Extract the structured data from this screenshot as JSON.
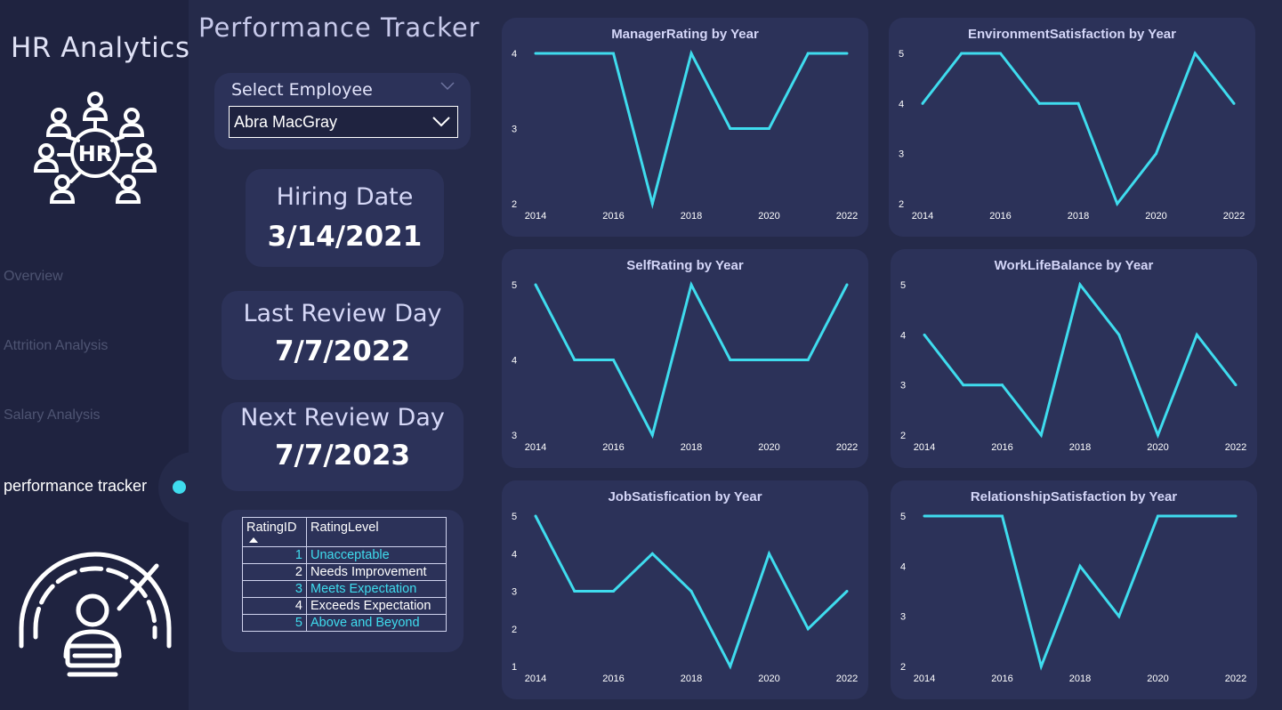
{
  "app": {
    "title": "HR Analytics",
    "page_title": "Performance Tracker"
  },
  "icons": {
    "hr_logo": "hr-people-network-icon",
    "gauge": "performance-gauge-icon",
    "dropdown": "chevron-down-icon"
  },
  "colors": {
    "accent": "#3fdcee",
    "background": "#252a4a",
    "card": "#2c3259",
    "sidebar": "#1f2340"
  },
  "sidebar": {
    "items": [
      {
        "label": "Overview",
        "active": false
      },
      {
        "label": "Attrition Analysis",
        "active": false
      },
      {
        "label": "Salary Analysis",
        "active": false
      },
      {
        "label": "performance tracker",
        "active": true
      }
    ]
  },
  "slicer": {
    "label": "Select Employee",
    "value": "Abra MacGray"
  },
  "kpis": {
    "hiring": {
      "label": "Hiring Date",
      "value": "3/14/2021"
    },
    "last_review": {
      "label": "Last Review Day",
      "value": "7/7/2022"
    },
    "next_review": {
      "label": "Next Review Day",
      "value": "7/7/2023"
    }
  },
  "rating_table": {
    "headers": [
      "RatingID",
      "RatingLevel"
    ],
    "rows": [
      [
        "1",
        "Unacceptable"
      ],
      [
        "2",
        "Needs Improvement"
      ],
      [
        "3",
        "Meets Expectation"
      ],
      [
        "4",
        "Exceeds Expectation"
      ],
      [
        "5",
        "Above and Beyond"
      ]
    ]
  },
  "chart_data": [
    {
      "type": "line",
      "title": "ManagerRating by Year",
      "x": [
        2014,
        2015,
        2016,
        2017,
        2018,
        2019,
        2020,
        2021,
        2022
      ],
      "y": [
        4,
        4,
        4,
        2,
        4,
        3,
        3,
        4,
        4
      ],
      "xticks": [
        "2014",
        "2016",
        "2018",
        "2020",
        "2022"
      ],
      "yticks": [
        "2",
        "3",
        "4"
      ],
      "ylim": [
        2,
        4
      ],
      "color": "#3fdcee"
    },
    {
      "type": "line",
      "title": "EnvironmentSatisfaction by Year",
      "x": [
        2014,
        2015,
        2016,
        2017,
        2018,
        2019,
        2020,
        2021,
        2022
      ],
      "y": [
        4,
        5,
        5,
        4,
        4,
        2,
        3,
        5,
        4
      ],
      "xticks": [
        "2014",
        "2016",
        "2018",
        "2020",
        "2022"
      ],
      "yticks": [
        "2",
        "3",
        "4",
        "5"
      ],
      "ylim": [
        2,
        5
      ],
      "color": "#3fdcee"
    },
    {
      "type": "line",
      "title": "SelfRating by Year",
      "x": [
        2014,
        2015,
        2016,
        2017,
        2018,
        2019,
        2020,
        2021,
        2022
      ],
      "y": [
        5,
        4,
        4,
        3,
        5,
        4,
        4,
        4,
        5
      ],
      "xticks": [
        "2014",
        "2016",
        "2018",
        "2020",
        "2022"
      ],
      "yticks": [
        "3",
        "4",
        "5"
      ],
      "ylim": [
        3,
        5
      ],
      "color": "#3fdcee"
    },
    {
      "type": "line",
      "title": "WorkLifeBalance by Year",
      "x": [
        2014,
        2015,
        2016,
        2017,
        2018,
        2019,
        2020,
        2021,
        2022
      ],
      "y": [
        4,
        3,
        3,
        2,
        5,
        4,
        2,
        4,
        3
      ],
      "xticks": [
        "2014",
        "2016",
        "2018",
        "2020",
        "2022"
      ],
      "yticks": [
        "2",
        "3",
        "4",
        "5"
      ],
      "ylim": [
        2,
        5
      ],
      "color": "#3fdcee"
    },
    {
      "type": "line",
      "title": "JobSatisfication by Year",
      "x": [
        2014,
        2015,
        2016,
        2017,
        2018,
        2019,
        2020,
        2021,
        2022
      ],
      "y": [
        5,
        3,
        3,
        4,
        3,
        1,
        4,
        2,
        3
      ],
      "xticks": [
        "2014",
        "2016",
        "2018",
        "2020",
        "2022"
      ],
      "yticks": [
        "1",
        "2",
        "3",
        "4",
        "5"
      ],
      "ylim": [
        1,
        5
      ],
      "color": "#3fdcee"
    },
    {
      "type": "line",
      "title": "RelationshipSatisfaction by Year",
      "x": [
        2014,
        2015,
        2016,
        2017,
        2018,
        2019,
        2020,
        2021,
        2022
      ],
      "y": [
        5,
        5,
        5,
        2,
        4,
        3,
        5,
        5,
        5
      ],
      "xticks": [
        "2014",
        "2016",
        "2018",
        "2020",
        "2022"
      ],
      "yticks": [
        "2",
        "3",
        "4",
        "5"
      ],
      "ylim": [
        2,
        5
      ],
      "color": "#3fdcee"
    }
  ]
}
